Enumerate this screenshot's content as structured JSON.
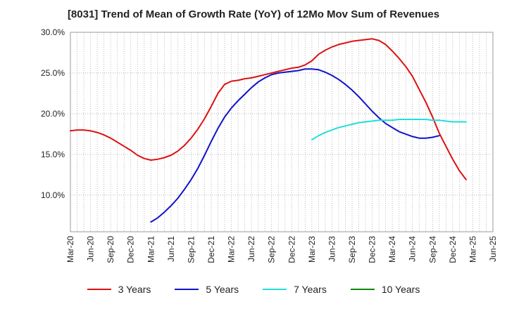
{
  "chart_data": {
    "type": "line",
    "title": "[8031]  Trend of Mean of Growth Rate (YoY) of 12Mo Mov Sum of Revenues",
    "xlabel": "",
    "ylabel": "",
    "ylim": [
      5.5,
      30.0
    ],
    "y_ticks": [
      "10.0%",
      "15.0%",
      "20.0%",
      "25.0%",
      "30.0%"
    ],
    "grid": true,
    "legend_position": "bottom",
    "x_ticks": [
      "Mar-20",
      "Jun-20",
      "Sep-20",
      "Dec-20",
      "Mar-21",
      "Jun-21",
      "Sep-21",
      "Dec-21",
      "Mar-22",
      "Jun-22",
      "Sep-22",
      "Dec-22",
      "Mar-23",
      "Jun-23",
      "Sep-23",
      "Dec-23",
      "Mar-24",
      "Jun-24",
      "Sep-24",
      "Dec-24",
      "Mar-25",
      "Jun-25"
    ],
    "series": [
      {
        "name": "3 Years",
        "color": "#dd1111",
        "start_index": 0,
        "values": [
          17.9,
          18.0,
          18.0,
          17.9,
          17.7,
          17.4,
          17.0,
          16.5,
          16.0,
          15.5,
          14.9,
          14.5,
          14.3,
          14.4,
          14.6,
          14.9,
          15.4,
          16.1,
          17.0,
          18.1,
          19.4,
          20.9,
          22.5,
          23.6,
          24.0,
          24.1,
          24.3,
          24.4,
          24.6,
          24.8,
          25.0,
          25.2,
          25.4,
          25.6,
          25.7,
          26.0,
          26.5,
          27.3,
          27.8,
          28.2,
          28.5,
          28.7,
          28.9,
          29.0,
          29.1,
          29.2,
          29.0,
          28.5,
          27.7,
          26.8,
          25.8,
          24.6,
          23.0,
          21.4,
          19.6,
          17.6,
          16.0,
          14.4,
          13.0,
          11.9
        ]
      },
      {
        "name": "5 Years",
        "color": "#1111cc",
        "start_index": 12,
        "values": [
          6.7,
          7.2,
          7.9,
          8.7,
          9.6,
          10.7,
          11.9,
          13.3,
          14.9,
          16.6,
          18.2,
          19.6,
          20.7,
          21.6,
          22.4,
          23.2,
          23.9,
          24.4,
          24.8,
          25.0,
          25.1,
          25.2,
          25.3,
          25.5,
          25.5,
          25.4,
          25.1,
          24.7,
          24.2,
          23.6,
          22.9,
          22.1,
          21.2,
          20.3,
          19.5,
          18.8,
          18.3,
          17.8,
          17.5,
          17.2,
          17.0,
          17.0,
          17.1,
          17.3
        ]
      },
      {
        "name": "7 Years",
        "color": "#22dddd",
        "start_index": 36,
        "values": [
          16.8,
          17.3,
          17.7,
          18.0,
          18.3,
          18.5,
          18.7,
          18.9,
          19.0,
          19.1,
          19.2,
          19.2,
          19.2,
          19.3,
          19.3,
          19.3,
          19.3,
          19.3,
          19.2,
          19.2,
          19.1,
          19.0,
          19.0,
          19.0
        ]
      },
      {
        "name": "10 Years",
        "color": "#118811",
        "start_index": 0,
        "values": []
      }
    ]
  }
}
